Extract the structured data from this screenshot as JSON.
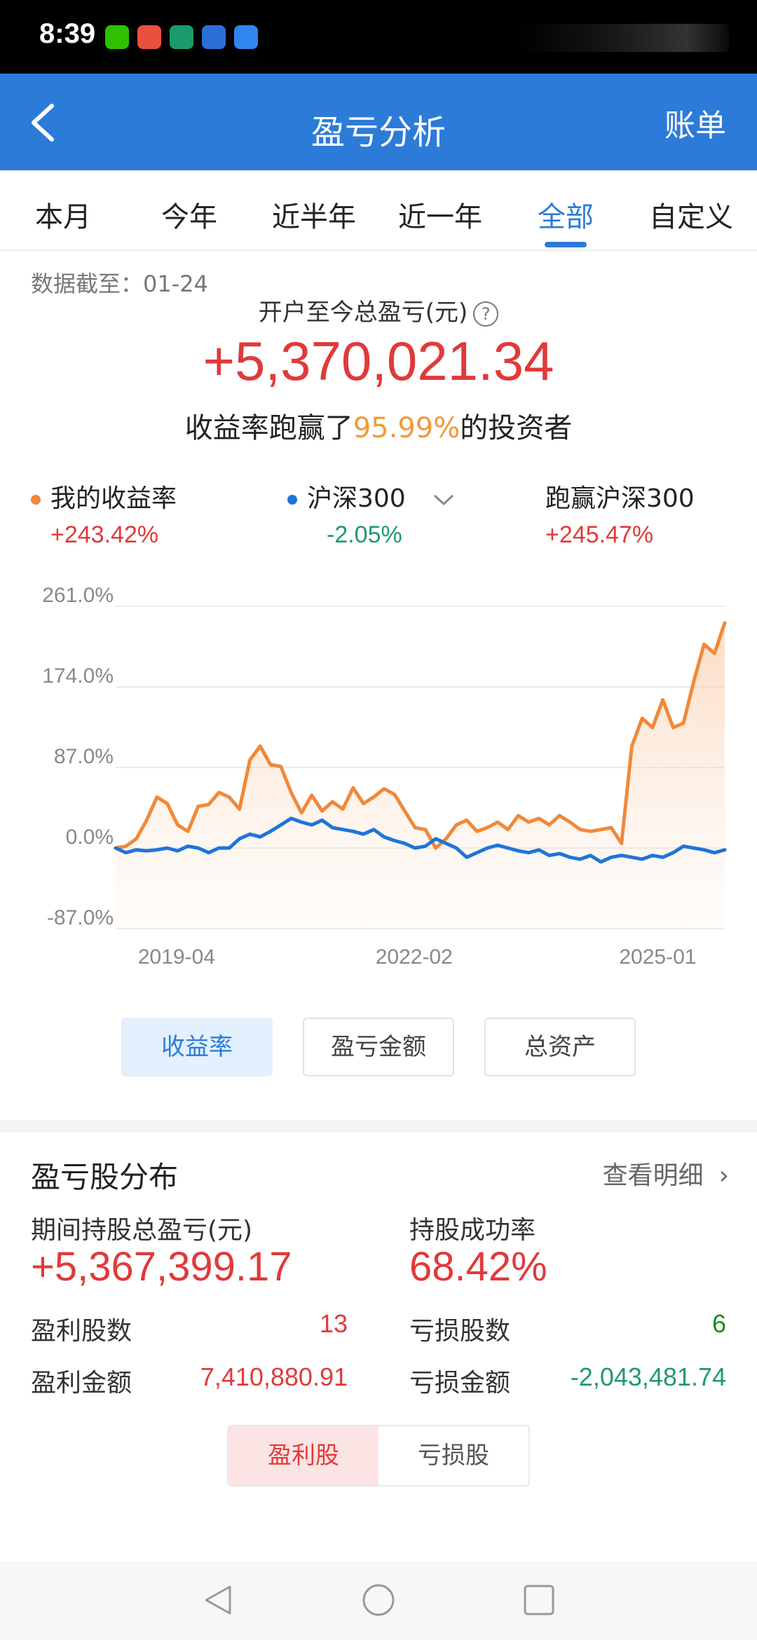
{
  "status": {
    "time": "8:39"
  },
  "header": {
    "title": "盈亏分析",
    "right_label": "账单"
  },
  "tabs": [
    "本月",
    "今年",
    "近半年",
    "近一年",
    "全部",
    "自定义"
  ],
  "active_tab": "全部",
  "summary": {
    "as_of": "数据截至：01-24",
    "total_label": "开户至今总盈亏(元)",
    "total_value": "+5,370,021.34",
    "beat_prefix": "收益率跑赢了",
    "beat_pct": "95.99%",
    "beat_suffix": "的投资者"
  },
  "legend": {
    "mine_label": "我的收益率",
    "mine_value": "+243.42%",
    "index_label": "沪深300",
    "index_value": "-2.05%",
    "beat_label": "跑赢沪深300",
    "beat_value": "+245.47%"
  },
  "chart_data": {
    "type": "line",
    "ylim": [
      -87.0,
      261.0
    ],
    "y_ticks": [
      "261.0%",
      "174.0%",
      "87.0%",
      "0.0%",
      "-87.0%"
    ],
    "y_tick_values": [
      261,
      174,
      87,
      0,
      -87
    ],
    "x_ticks": [
      "2019-04",
      "2022-02",
      "2025-01"
    ],
    "x_tick_positions": [
      0.1,
      0.49,
      0.89
    ],
    "grid": true,
    "legend_position": "top",
    "series": [
      {
        "name": "我的收益率",
        "color": "#f0893a",
        "values": [
          0,
          2,
          10,
          30,
          55,
          48,
          25,
          18,
          45,
          47,
          60,
          55,
          42,
          95,
          110,
          90,
          88,
          60,
          38,
          57,
          40,
          50,
          42,
          65,
          48,
          55,
          64,
          58,
          40,
          22,
          20,
          0,
          10,
          25,
          30,
          18,
          22,
          28,
          20,
          35,
          28,
          32,
          25,
          35,
          28,
          20,
          18,
          20,
          22,
          5,
          110,
          140,
          130,
          160,
          130,
          135,
          180,
          220,
          210,
          243
        ]
      },
      {
        "name": "沪深300",
        "color": "#1f74d9",
        "values": [
          0,
          -5,
          -2,
          -3,
          -2,
          0,
          -3,
          2,
          0,
          -5,
          0,
          0,
          10,
          15,
          12,
          18,
          25,
          32,
          28,
          25,
          30,
          22,
          20,
          18,
          15,
          20,
          12,
          8,
          5,
          0,
          2,
          10,
          5,
          0,
          -10,
          -5,
          0,
          3,
          0,
          -3,
          -5,
          -2,
          -8,
          -6,
          -10,
          -12,
          -8,
          -15,
          -10,
          -8,
          -10,
          -12,
          -8,
          -10,
          -5,
          2,
          0,
          -2,
          -5,
          -2
        ]
      }
    ]
  },
  "chart_buttons": [
    "收益率",
    "盈亏金额",
    "总资产"
  ],
  "active_chart_button": "收益率",
  "distribution": {
    "title": "盈亏股分布",
    "link": "查看明细",
    "period_label": "期间持股总盈亏(元)",
    "period_value": "+5,367,399.17",
    "success_label": "持股成功率",
    "success_value": "68.42%",
    "profit_count_label": "盈利股数",
    "profit_count": "13",
    "loss_count_label": "亏损股数",
    "loss_count": "6",
    "profit_amount_label": "盈利金额",
    "profit_amount": "7,410,880.91",
    "loss_amount_label": "亏损金额",
    "loss_amount": "-2,043,481.74"
  },
  "toggle": {
    "profit": "盈利股",
    "loss": "亏损股"
  }
}
